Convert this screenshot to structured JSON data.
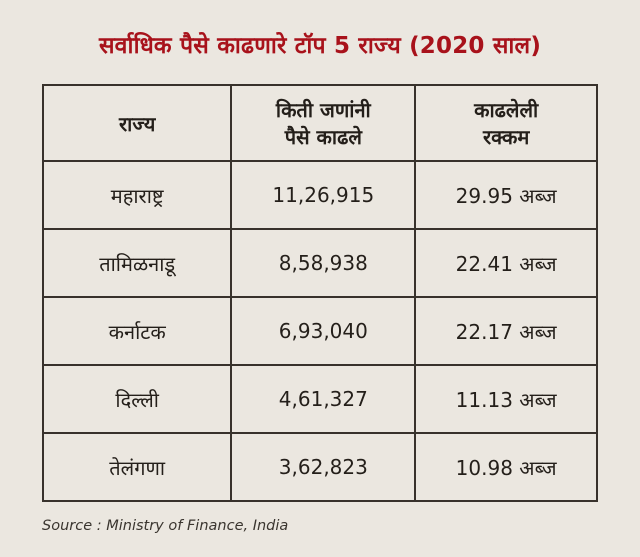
{
  "colors": {
    "background": "#ebe7e0",
    "title_red": "#a8121b",
    "border": "#38322c",
    "text": "#241f1a"
  },
  "chart_data": {
    "type": "table",
    "title": "सर्वाधिक पैसे काढणारे टॉप 5 राज्य (2020 साल)",
    "columns": [
      "राज्य",
      "किती जणांनी\nपैसे काढले",
      "काढलेली\nरक्कम"
    ],
    "rows": [
      [
        "महाराष्ट्र",
        "11,26,915",
        "29.95 अब्ज"
      ],
      [
        "तामिळनाडू",
        "8,58,938",
        "22.41 अब्ज"
      ],
      [
        "कर्नाटक",
        "6,93,040",
        "22.17 अब्ज"
      ],
      [
        "दिल्ली",
        "4,61,327",
        "11.13 अब्ज"
      ],
      [
        "तेलंगणा",
        "3,62,823",
        "10.98 अब्ज"
      ]
    ],
    "source": "Source : Ministry of Finance, India",
    "layout": {
      "legend": "none",
      "grid": "full-borders"
    }
  }
}
